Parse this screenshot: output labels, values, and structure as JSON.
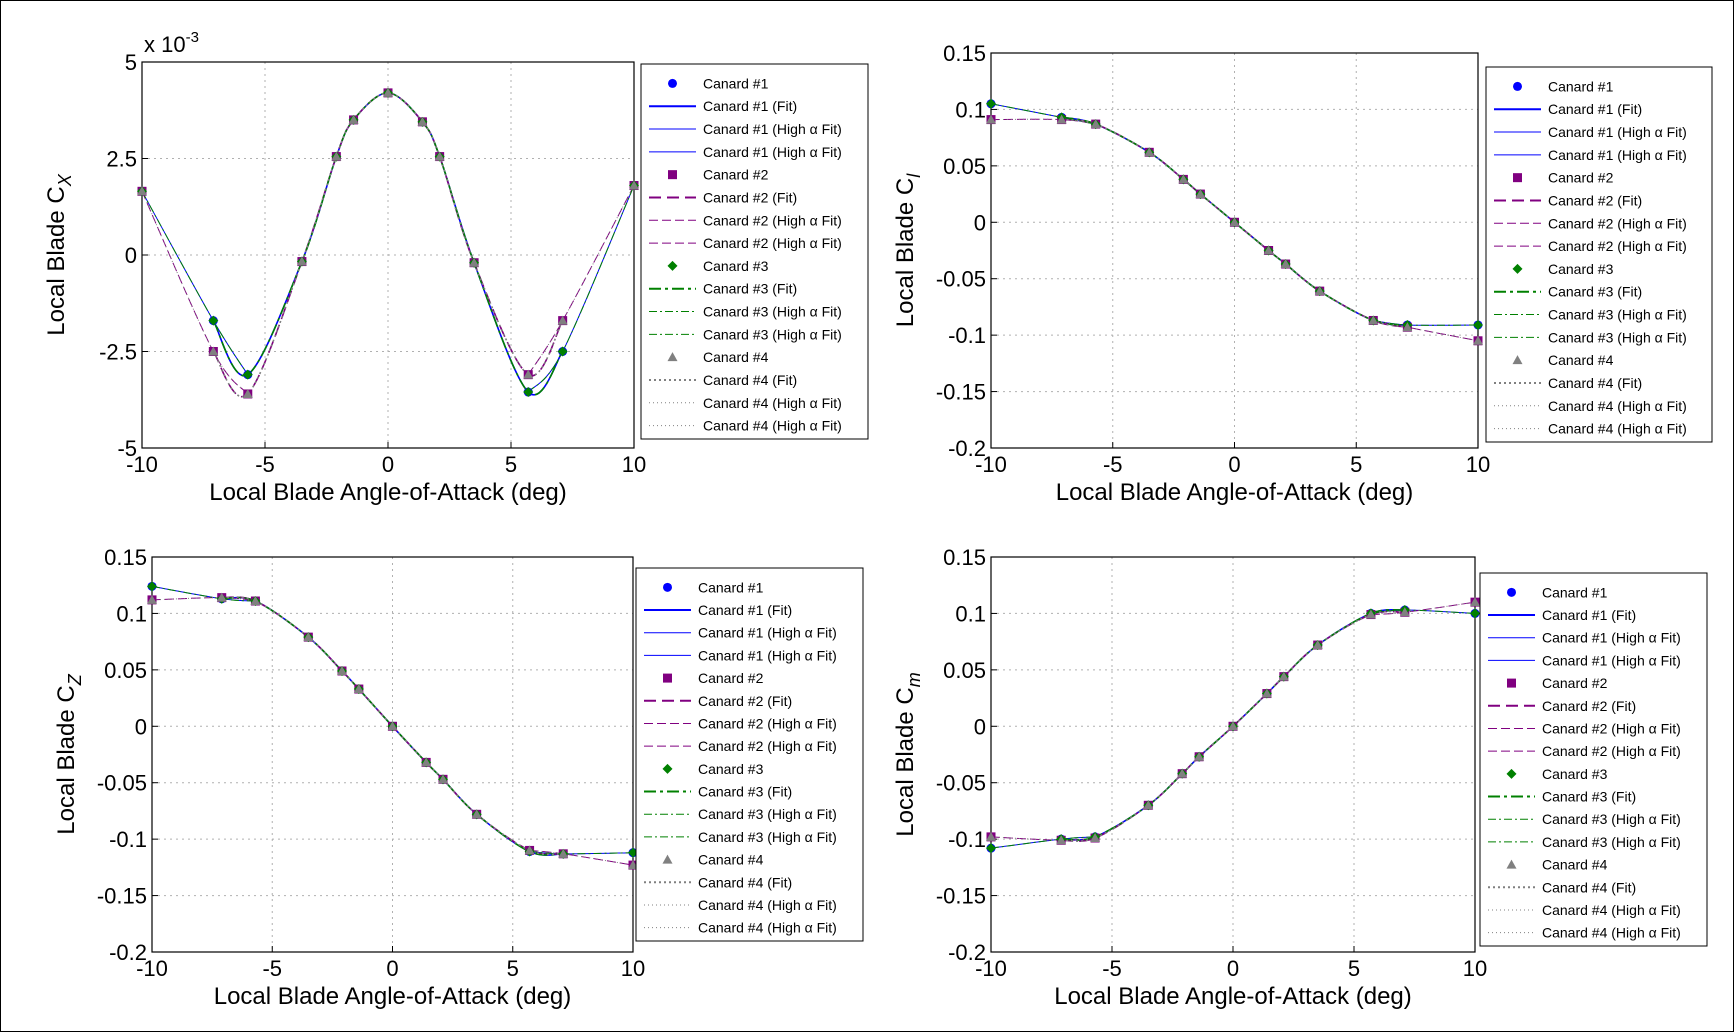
{
  "figure": {
    "x_axis_label": "Local Blade Angle-of-Attack (deg)",
    "colors": {
      "canard1": "#0000ff",
      "canard2": "#800080",
      "canard3": "#008000",
      "canard4": "#808080",
      "grid": "#b0b0b0",
      "axes": "#000000"
    },
    "legend_entries": [
      {
        "text": "Canard #1",
        "series": 0,
        "kind": "marker"
      },
      {
        "text": "Canard #1 (Fit)",
        "series": 0,
        "kind": "fit"
      },
      {
        "text": "Canard #1 (High α Fit)",
        "series": 0,
        "kind": "high"
      },
      {
        "text": "Canard #1 (High α Fit)",
        "series": 0,
        "kind": "high"
      },
      {
        "text": "Canard #2",
        "series": 1,
        "kind": "marker"
      },
      {
        "text": "Canard #2 (Fit)",
        "series": 1,
        "kind": "fit"
      },
      {
        "text": "Canard #2 (High α Fit)",
        "series": 1,
        "kind": "high"
      },
      {
        "text": "Canard #2 (High α Fit)",
        "series": 1,
        "kind": "high"
      },
      {
        "text": "Canard #3",
        "series": 2,
        "kind": "marker"
      },
      {
        "text": "Canard #3 (Fit)",
        "series": 2,
        "kind": "fit"
      },
      {
        "text": "Canard #3 (High α Fit)",
        "series": 2,
        "kind": "high"
      },
      {
        "text": "Canard #3 (High α Fit)",
        "series": 2,
        "kind": "high"
      },
      {
        "text": "Canard #4",
        "series": 3,
        "kind": "marker"
      },
      {
        "text": "Canard #4 (Fit)",
        "series": 3,
        "kind": "fit"
      },
      {
        "text": "Canard #4 (High α Fit)",
        "series": 3,
        "kind": "high"
      },
      {
        "text": "Canard #4 (High α Fit)",
        "series": 3,
        "kind": "high"
      }
    ]
  },
  "chart_data": [
    {
      "type": "line",
      "ylabel_main": "Local Blade C",
      "ylabel_sub": "X",
      "exponent_label": "x 10",
      "exponent_power": "-3",
      "xlim": [
        -10,
        10
      ],
      "ylim": [
        -5,
        5
      ],
      "xticks": [
        -10,
        -5,
        0,
        5,
        10
      ],
      "yticks": [
        5,
        2.5,
        0,
        -2.5,
        -5
      ],
      "ytick_labels": [
        "5",
        "2.5",
        "0",
        "-2.5",
        "-5"
      ],
      "grid": true,
      "legend_placement": "right",
      "series": [
        {
          "name": "Canard #1",
          "x": [
            -10,
            -7.1,
            -5.7,
            -3.5,
            -2.1,
            -1.4,
            0,
            1.4,
            2.1,
            3.5,
            5.7,
            7.1,
            10
          ],
          "y": [
            1.65,
            -1.7,
            -3.1,
            -0.17,
            2.55,
            3.5,
            4.2,
            3.45,
            2.55,
            -0.2,
            -3.55,
            -2.5,
            1.8
          ]
        },
        {
          "name": "Canard #2",
          "x": [
            -10,
            -7.1,
            -5.7,
            -3.5,
            -2.1,
            -1.4,
            0,
            1.4,
            2.1,
            3.5,
            5.7,
            7.1,
            10
          ],
          "y": [
            1.65,
            -2.5,
            -3.6,
            -0.17,
            2.55,
            3.5,
            4.2,
            3.45,
            2.55,
            -0.2,
            -3.1,
            -1.7,
            1.8
          ]
        },
        {
          "name": "Canard #3",
          "x": [
            -10,
            -7.1,
            -5.7,
            -3.5,
            -2.1,
            -1.4,
            0,
            1.4,
            2.1,
            3.5,
            5.7,
            7.1,
            10
          ],
          "y": [
            1.65,
            -1.7,
            -3.1,
            -0.17,
            2.55,
            3.5,
            4.2,
            3.45,
            2.55,
            -0.2,
            -3.55,
            -2.5,
            1.8
          ]
        },
        {
          "name": "Canard #4",
          "x": [
            -10,
            -7.1,
            -5.7,
            -3.5,
            -2.1,
            -1.4,
            0,
            1.4,
            2.1,
            3.5,
            5.7,
            7.1,
            10
          ],
          "y": [
            1.65,
            -2.5,
            -3.6,
            -0.17,
            2.55,
            3.5,
            4.2,
            3.45,
            2.55,
            -0.2,
            -3.1,
            -1.7,
            1.8
          ]
        }
      ]
    },
    {
      "type": "line",
      "ylabel_main": "Local Blade C",
      "ylabel_sub": "l",
      "xlim": [
        -10,
        10
      ],
      "ylim": [
        -0.2,
        0.15
      ],
      "xticks": [
        -10,
        -5,
        0,
        5,
        10
      ],
      "yticks": [
        0.15,
        0.1,
        0.05,
        0,
        -0.05,
        -0.1,
        -0.15,
        -0.2
      ],
      "ytick_labels": [
        "0.15",
        "0.1",
        "0.05",
        "0",
        "-0.05",
        "-0.1",
        "-0.15",
        "-0.2"
      ],
      "grid": true,
      "legend_placement": "right",
      "series": [
        {
          "name": "Canard #1",
          "x": [
            -10,
            -7.1,
            -5.7,
            -3.5,
            -2.1,
            -1.4,
            0,
            1.4,
            2.1,
            3.5,
            5.7,
            7.1,
            10
          ],
          "y": [
            0.105,
            0.093,
            0.087,
            0.062,
            0.038,
            0.025,
            0,
            -0.025,
            -0.037,
            -0.061,
            -0.087,
            -0.091,
            -0.091
          ]
        },
        {
          "name": "Canard #2",
          "x": [
            -10,
            -7.1,
            -5.7,
            -3.5,
            -2.1,
            -1.4,
            0,
            1.4,
            2.1,
            3.5,
            5.7,
            7.1,
            10
          ],
          "y": [
            0.091,
            0.091,
            0.087,
            0.062,
            0.038,
            0.025,
            0,
            -0.025,
            -0.037,
            -0.061,
            -0.087,
            -0.093,
            -0.105
          ]
        },
        {
          "name": "Canard #3",
          "x": [
            -10,
            -7.1,
            -5.7,
            -3.5,
            -2.1,
            -1.4,
            0,
            1.4,
            2.1,
            3.5,
            5.7,
            7.1,
            10
          ],
          "y": [
            0.105,
            0.093,
            0.087,
            0.062,
            0.038,
            0.025,
            0,
            -0.025,
            -0.037,
            -0.061,
            -0.087,
            -0.091,
            -0.091
          ]
        },
        {
          "name": "Canard #4",
          "x": [
            -10,
            -7.1,
            -5.7,
            -3.5,
            -2.1,
            -1.4,
            0,
            1.4,
            2.1,
            3.5,
            5.7,
            7.1,
            10
          ],
          "y": [
            0.091,
            0.091,
            0.087,
            0.062,
            0.038,
            0.025,
            0,
            -0.025,
            -0.037,
            -0.061,
            -0.087,
            -0.093,
            -0.105
          ]
        }
      ]
    },
    {
      "type": "line",
      "ylabel_main": "Local Blade C",
      "ylabel_sub": "Z",
      "xlim": [
        -10,
        10
      ],
      "ylim": [
        -0.2,
        0.15
      ],
      "xticks": [
        -10,
        -5,
        0,
        5,
        10
      ],
      "yticks": [
        0.15,
        0.1,
        0.05,
        0,
        -0.05,
        -0.1,
        -0.15,
        -0.2
      ],
      "ytick_labels": [
        "0.15",
        "0.1",
        "0.05",
        "0",
        "-0.05",
        "-0.1",
        "-0.15",
        "-0.2"
      ],
      "grid": true,
      "legend_placement": "right",
      "series": [
        {
          "name": "Canard #1",
          "x": [
            -10,
            -7.1,
            -5.7,
            -3.5,
            -2.1,
            -1.4,
            0,
            1.4,
            2.1,
            3.5,
            5.7,
            7.1,
            10
          ],
          "y": [
            0.124,
            0.113,
            0.111,
            0.079,
            0.049,
            0.033,
            0,
            -0.032,
            -0.047,
            -0.078,
            -0.111,
            -0.113,
            -0.112
          ]
        },
        {
          "name": "Canard #2",
          "x": [
            -10,
            -7.1,
            -5.7,
            -3.5,
            -2.1,
            -1.4,
            0,
            1.4,
            2.1,
            3.5,
            5.7,
            7.1,
            10
          ],
          "y": [
            0.112,
            0.114,
            0.111,
            0.079,
            0.049,
            0.033,
            0,
            -0.032,
            -0.047,
            -0.078,
            -0.11,
            -0.113,
            -0.123
          ]
        },
        {
          "name": "Canard #3",
          "x": [
            -10,
            -7.1,
            -5.7,
            -3.5,
            -2.1,
            -1.4,
            0,
            1.4,
            2.1,
            3.5,
            5.7,
            7.1,
            10
          ],
          "y": [
            0.124,
            0.113,
            0.111,
            0.079,
            0.049,
            0.033,
            0,
            -0.032,
            -0.047,
            -0.078,
            -0.111,
            -0.113,
            -0.112
          ]
        },
        {
          "name": "Canard #4",
          "x": [
            -10,
            -7.1,
            -5.7,
            -3.5,
            -2.1,
            -1.4,
            0,
            1.4,
            2.1,
            3.5,
            5.7,
            7.1,
            10
          ],
          "y": [
            0.112,
            0.114,
            0.111,
            0.079,
            0.049,
            0.033,
            0,
            -0.032,
            -0.047,
            -0.078,
            -0.11,
            -0.113,
            -0.123
          ]
        }
      ]
    },
    {
      "type": "line",
      "ylabel_main": "Local Blade C",
      "ylabel_sub": "m",
      "xlim": [
        -10,
        10
      ],
      "ylim": [
        -0.2,
        0.15
      ],
      "xticks": [
        -10,
        -5,
        0,
        5,
        10
      ],
      "yticks": [
        0.15,
        0.1,
        0.05,
        0,
        -0.05,
        -0.1,
        -0.15,
        -0.2
      ],
      "ytick_labels": [
        "0.15",
        "0.1",
        "0.05",
        "0",
        "-0.05",
        "-0.1",
        "-0.15",
        "-0.2"
      ],
      "grid": true,
      "legend_placement": "right",
      "series": [
        {
          "name": "Canard #1",
          "x": [
            -10,
            -7.1,
            -5.7,
            -3.5,
            -2.1,
            -1.4,
            0,
            1.4,
            2.1,
            3.5,
            5.7,
            7.1,
            10
          ],
          "y": [
            -0.108,
            -0.1,
            -0.098,
            -0.07,
            -0.042,
            -0.027,
            0,
            0.029,
            0.044,
            0.072,
            0.1,
            0.103,
            0.1
          ]
        },
        {
          "name": "Canard #2",
          "x": [
            -10,
            -7.1,
            -5.7,
            -3.5,
            -2.1,
            -1.4,
            0,
            1.4,
            2.1,
            3.5,
            5.7,
            7.1,
            10
          ],
          "y": [
            -0.098,
            -0.101,
            -0.099,
            -0.07,
            -0.042,
            -0.027,
            0,
            0.029,
            0.044,
            0.072,
            0.099,
            0.101,
            0.11
          ]
        },
        {
          "name": "Canard #3",
          "x": [
            -10,
            -7.1,
            -5.7,
            -3.5,
            -2.1,
            -1.4,
            0,
            1.4,
            2.1,
            3.5,
            5.7,
            7.1,
            10
          ],
          "y": [
            -0.108,
            -0.1,
            -0.098,
            -0.07,
            -0.042,
            -0.027,
            0,
            0.029,
            0.044,
            0.072,
            0.1,
            0.103,
            0.1
          ]
        },
        {
          "name": "Canard #4",
          "x": [
            -10,
            -7.1,
            -5.7,
            -3.5,
            -2.1,
            -1.4,
            0,
            1.4,
            2.1,
            3.5,
            5.7,
            7.1,
            10
          ],
          "y": [
            -0.098,
            -0.101,
            -0.099,
            -0.07,
            -0.042,
            -0.027,
            0,
            0.029,
            0.044,
            0.072,
            0.099,
            0.101,
            0.11
          ]
        }
      ]
    }
  ]
}
